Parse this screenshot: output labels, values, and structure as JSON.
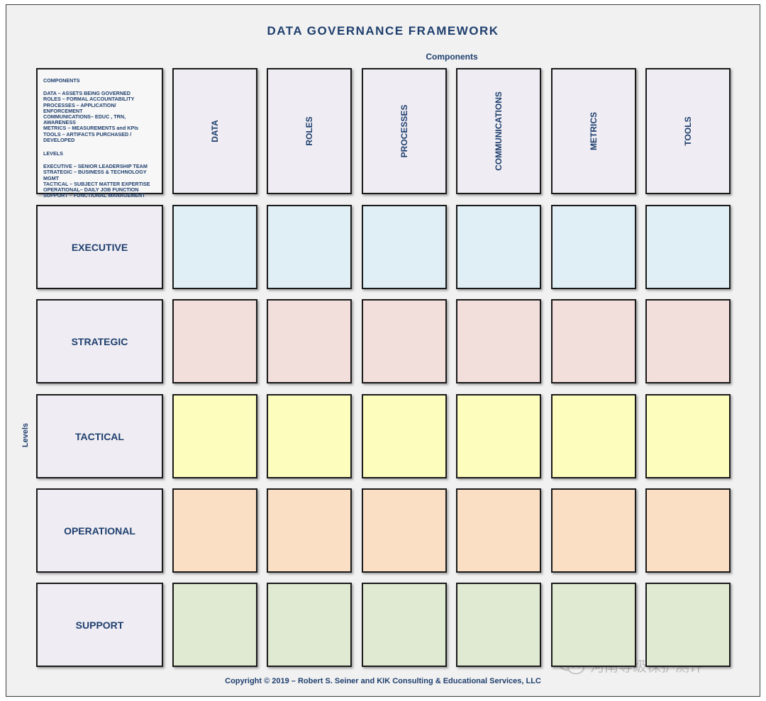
{
  "title": "DATA GOVERNANCE FRAMEWORK",
  "axis": {
    "components": "Components",
    "levels": "Levels"
  },
  "legend": {
    "components_head": "COMPONENTS",
    "components_lines": [
      "DATA – ASSETS BEING GOVERNED",
      "ROLES – FORMAL ACCOUNTABILITY",
      "PROCESSES – APPLICATION/ ENFORCEMENT",
      "COMMUNICATIONS– EDUC , TRN, AWARENESS",
      "METRICS – MEASUREMENTS and KPIs",
      "TOOLS – ARTIFACTS PURCHASED / DEVELOPED"
    ],
    "levels_head": "LEVELS",
    "levels_lines": [
      "EXECUTIVE – SENIOR LEADERSHIP TEAM",
      "STRATEGIC – BUSINESS & TECHNOLOGY MGMT",
      "TACTICAL – SUBJECT MATTER EXPERTISE",
      "OPERATIONAL– DAILY JOB FUNCTION",
      "SUPPORT – FUNCTIONAL MANAGEMENT"
    ]
  },
  "columns": [
    "DATA",
    "ROLES",
    "PROCESSES",
    "COMMUNICATIONS",
    "METRICS",
    "TOOLS"
  ],
  "rows": [
    {
      "label": "EXECUTIVE",
      "color": "#dfeff5"
    },
    {
      "label": "STRATEGIC",
      "color": "#f2dedb"
    },
    {
      "label": "TACTICAL",
      "color": "#fdfdbd"
    },
    {
      "label": "OPERATIONAL",
      "color": "#fbdfc5"
    },
    {
      "label": "SUPPORT",
      "color": "#e0e9d1"
    }
  ],
  "copyright": "Copyright © 2019 – Robert S. Seiner and KIK Consulting & Educational Services, LLC",
  "watermark": "河南等级保护测评"
}
